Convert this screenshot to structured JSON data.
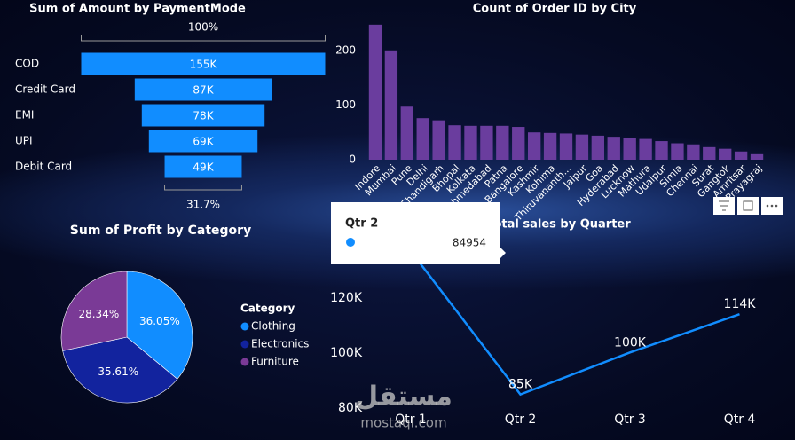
{
  "chart_data": [
    {
      "type": "funnel",
      "title": "Sum of Amount by PaymentMode",
      "categories": [
        "COD",
        "Credit Card",
        "EMI",
        "UPI",
        "Debit Card"
      ],
      "values": [
        155000,
        87000,
        78000,
        69000,
        49000
      ],
      "value_labels": [
        "155K",
        "87K",
        "78K",
        "69K",
        "49K"
      ],
      "percent_labels": [
        "100%",
        "31.7%"
      ],
      "color": "#118dff"
    },
    {
      "type": "bar",
      "title": "Count of Order ID by City",
      "categories": [
        "Indore",
        "Mumbai",
        "Pune",
        "Delhi",
        "Chandigarh",
        "Bhopal",
        "Kolkata",
        "Ahmedabad",
        "Patna",
        "Bangalore",
        "Kashmir",
        "Kohima",
        "Thiruvananth...",
        "Jaipur",
        "Goa",
        "Hyderabad",
        "Lucknow",
        "Mathura",
        "Udaipur",
        "Simla",
        "Chennai",
        "Surat",
        "Gangtok",
        "Amritsar",
        "Prayagraj"
      ],
      "values": [
        247,
        200,
        97,
        76,
        72,
        63,
        62,
        62,
        62,
        60,
        50,
        49,
        48,
        46,
        44,
        42,
        40,
        38,
        34,
        30,
        28,
        23,
        20,
        15,
        10
      ],
      "color": "#6a3d9e",
      "ylim": [
        0,
        250
      ],
      "yticks": [
        0,
        100,
        200
      ],
      "grid": false
    },
    {
      "type": "pie",
      "title": "Sum of Profit by Category",
      "legend_title": "Category",
      "categories": [
        "Clothing",
        "Electronics",
        "Furniture"
      ],
      "values": [
        36.05,
        35.61,
        28.34
      ],
      "value_labels": [
        "36.05%",
        "35.61%",
        "28.34%"
      ],
      "colors": [
        "#118dff",
        "#12239e",
        "#7a3a96"
      ],
      "legend": "right"
    },
    {
      "type": "line",
      "title": "Total sales by Quarter",
      "categories": [
        "Qtr 1",
        "Qtr 2",
        "Qtr 3",
        "Qtr 4"
      ],
      "values": [
        137000,
        84954,
        100200,
        114100
      ],
      "value_labels": [
        null,
        "85K",
        "100K",
        "114K"
      ],
      "color": "#118dff",
      "ylim": [
        76800,
        138000
      ],
      "yticks": [
        {
          "value": 80000,
          "label": "80K"
        },
        {
          "value": 100000,
          "label": "100K"
        },
        {
          "value": 120000,
          "label": "120K"
        }
      ],
      "grid": false
    }
  ],
  "tooltip": {
    "title": "Qtr 2",
    "value": 84954
  },
  "watermark": {
    "arabic": "مستقل",
    "latin": "mostaql.com"
  }
}
